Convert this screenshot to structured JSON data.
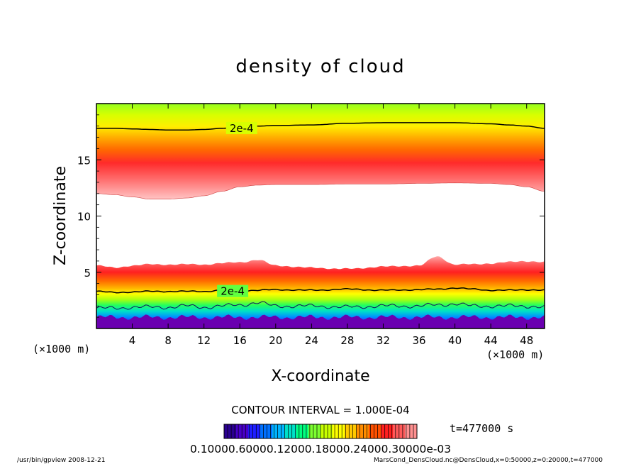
{
  "chart_data": {
    "type": "contour",
    "title": "density of cloud",
    "xlabel": "X-coordinate",
    "ylabel": "Z-coordinate",
    "x_unit_left": "(×1000 m)",
    "x_unit_right": "(×1000 m)",
    "xlim": [
      0,
      50
    ],
    "ylim": [
      0,
      20
    ],
    "xticks": [
      4,
      8,
      12,
      16,
      20,
      24,
      28,
      32,
      36,
      40,
      44,
      48
    ],
    "yticks": [
      5,
      10,
      15
    ],
    "contour_interval_text": "CONTOUR INTERVAL = 1.000E-04",
    "time_text": "t=477000 s",
    "colorbar_labels_text": "0.10000.60000.12000.18000.24000.30000e-03",
    "contour_labels": [
      {
        "text": "2e-4",
        "x": 16.2,
        "z": 17.8
      },
      {
        "text": "2e-4",
        "x": 15.2,
        "z": 3.3
      }
    ],
    "upper_layer": {
      "description_axis": "bottom edge of upper cloud layer (z, km) vs x (km)",
      "x": [
        0,
        2,
        4,
        6,
        8,
        10,
        12,
        14,
        16,
        18,
        20,
        24,
        28,
        32,
        36,
        40,
        44,
        46,
        48,
        50
      ],
      "bottom": [
        12.0,
        11.9,
        11.7,
        11.5,
        11.5,
        11.6,
        11.8,
        12.2,
        12.6,
        12.75,
        12.8,
        12.8,
        12.85,
        12.85,
        12.9,
        12.95,
        12.9,
        12.8,
        12.6,
        12.2
      ],
      "core": [
        14.5,
        14.1,
        13.6,
        13.3,
        13.4,
        13.6,
        14.0,
        14.3,
        14.6,
        14.8,
        14.9,
        15.0,
        15.1,
        15.1,
        15.1,
        15.2,
        15.1,
        14.9,
        14.7,
        14.3
      ],
      "contour_2e4": [
        17.8,
        17.8,
        17.75,
        17.7,
        17.65,
        17.65,
        17.7,
        17.8,
        17.9,
        18.0,
        18.05,
        18.1,
        18.25,
        18.3,
        18.3,
        18.3,
        18.2,
        18.1,
        18.0,
        17.8
      ]
    },
    "lower_layer": {
      "description_axis": "top edge of lower cloud layer (z, km) vs x (km)",
      "x": [
        0,
        2,
        4,
        6,
        8,
        10,
        12,
        14,
        16,
        18,
        20,
        24,
        28,
        32,
        36,
        38,
        40,
        42,
        44,
        46,
        48,
        50
      ],
      "top": [
        5.6,
        5.4,
        5.6,
        5.7,
        5.7,
        5.7,
        5.7,
        5.8,
        5.9,
        6.1,
        5.6,
        5.4,
        5.3,
        5.5,
        5.6,
        6.4,
        5.7,
        5.7,
        5.8,
        5.9,
        6.0,
        5.9
      ],
      "contour_2e4": [
        3.3,
        3.2,
        3.25,
        3.3,
        3.3,
        3.3,
        3.3,
        3.4,
        3.35,
        3.4,
        3.45,
        3.4,
        3.5,
        3.4,
        3.45,
        3.5,
        3.6,
        3.5,
        3.4,
        3.4,
        3.45,
        3.4
      ],
      "blue_contour": [
        1.8,
        1.8,
        1.9,
        1.9,
        1.9,
        2.0,
        1.9,
        2.0,
        2.1,
        2.3,
        2.0,
        2.0,
        1.9,
        2.0,
        2.0,
        2.1,
        2.2,
        2.0,
        2.0,
        2.0,
        2.0,
        1.9
      ]
    },
    "colorbar_colors": [
      "#2a0090",
      "#4800c8",
      "#1f1fff",
      "#0070ff",
      "#00b4ff",
      "#00e0c8",
      "#00ff80",
      "#7cff30",
      "#c8ff00",
      "#ffff00",
      "#ffc800",
      "#ff8c00",
      "#ff5000",
      "#ff2020",
      "#ff5a5a",
      "#ff9090"
    ]
  },
  "footer": {
    "program": "/usr/bin/gpview   2008-12-21",
    "source": "MarsCond_DensCloud.nc@DensCloud,x=0:50000,z=0:20000,t=477000"
  }
}
